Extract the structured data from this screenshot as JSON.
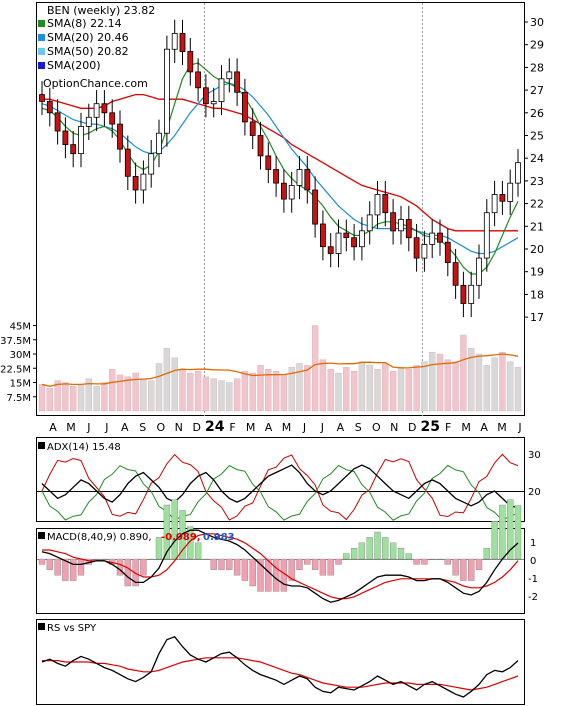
{
  "colors": {
    "sma8": "#228b22",
    "sma20": "#1e8fd6",
    "sma50": "#6cc6ee",
    "sma200": "#1a1acc",
    "sma_red": "#dd0000",
    "up_candle": "#ffffff",
    "down_candle": "#cc1111",
    "volume_bar": "#f2c4cc",
    "volume_bar_alt": "#d8d8d8",
    "volume_ma": "#e06a00",
    "adx_pos": "#cc0000",
    "adx_neg": "#228b22",
    "macd_pos": "#9fe09f",
    "macd_neg": "#f0a0b0",
    "macd_num_red": "#dd0000",
    "macd_num_blue": "#2255cc"
  },
  "legend": {
    "title": "BEN (weekly) 23.82",
    "items": [
      {
        "label": "SMA(8) 22.14",
        "color": "#228b22"
      },
      {
        "label": "SMA(20) 20.46",
        "color": "#1e8fd6"
      },
      {
        "label": "SMA(50) 20.82",
        "color": "#6cc6ee"
      },
      {
        "label": "SMA(200)",
        "color": "#1a1acc"
      }
    ],
    "source": "OptionChance.com"
  },
  "price_axis": {
    "ticks": [
      "30",
      "29",
      "28",
      "27",
      "26",
      "25",
      "24",
      "23",
      "22",
      "21",
      "20",
      "19",
      "18",
      "17"
    ]
  },
  "volume_axis": {
    "ticks": [
      "45M",
      "37.5M",
      "30M",
      "22.5M",
      "15M",
      "7.5M"
    ]
  },
  "months": [
    "A",
    "M",
    "J",
    "J",
    "A",
    "S",
    "O",
    "N",
    "D",
    "24",
    "F",
    "M",
    "A",
    "M",
    "J",
    "J",
    "A",
    "S",
    "O",
    "N",
    "D",
    "25",
    "F",
    "M",
    "A",
    "M",
    "J"
  ],
  "adx": {
    "label": "ADX(14) 15.48",
    "ticks": [
      "30",
      "20"
    ]
  },
  "macd": {
    "label": "MACD(8,40,9) 0.890,",
    "val1": "-0.089,",
    "val2": "0.983",
    "ticks": [
      "1",
      "0",
      "-1",
      "-2"
    ]
  },
  "rs": {
    "label": "RS vs SPY"
  },
  "chart_data": {
    "type": "candlestick",
    "title": "BEN (weekly) 23.82",
    "close": [
      26.5,
      26.0,
      25.2,
      24.6,
      24.2,
      25.4,
      25.8,
      26.4,
      26.0,
      25.5,
      24.4,
      23.2,
      22.6,
      23.3,
      24.2,
      25.1,
      28.8,
      29.5,
      28.7,
      27.8,
      27.1,
      26.4,
      26.5,
      27.5,
      27.8,
      26.9,
      25.6,
      25.0,
      24.1,
      23.5,
      22.9,
      22.2,
      22.8,
      23.5,
      22.6,
      21.1,
      20.1,
      19.8,
      20.7,
      20.5,
      20.1,
      20.8,
      21.5,
      22.4,
      21.6,
      20.8,
      21.3,
      20.5,
      19.6,
      20.2,
      20.7,
      20.3,
      19.4,
      18.4,
      17.6,
      18.4,
      19.6,
      21.6,
      22.4,
      22.1,
      22.9,
      23.8
    ],
    "volume_m": [
      14,
      12,
      16,
      15,
      13,
      14,
      17,
      13,
      15,
      22,
      19,
      18,
      20,
      17,
      16,
      25,
      33,
      28,
      22,
      20,
      21,
      18,
      17,
      16,
      15,
      17,
      21,
      20,
      24,
      22,
      21,
      19,
      23,
      25,
      24,
      45,
      27,
      22,
      20,
      23,
      21,
      26,
      24,
      22,
      25,
      21,
      23,
      22,
      24,
      26,
      31,
      30,
      27,
      26,
      40,
      33,
      30,
      24,
      28,
      31,
      26,
      23
    ],
    "sma8": [
      26.2,
      26.1,
      25.8,
      25.4,
      25.1,
      25.0,
      25.1,
      25.3,
      25.4,
      25.2,
      24.8,
      24.2,
      23.7,
      23.5,
      23.7,
      24.3,
      25.3,
      26.4,
      27.5,
      28.1,
      28.2,
      27.9,
      27.6,
      27.4,
      27.3,
      27.1,
      26.7,
      26.1,
      25.4,
      24.8,
      24.1,
      23.5,
      23.1,
      22.8,
      22.6,
      22.3,
      21.9,
      21.4,
      21.0,
      20.8,
      20.6,
      20.6,
      20.8,
      21.1,
      21.2,
      21.2,
      21.1,
      21.0,
      20.8,
      20.6,
      20.5,
      20.4,
      20.1,
      19.7,
      19.2,
      18.9,
      18.9,
      19.2,
      19.8,
      20.6,
      21.4,
      22.1
    ],
    "sma20": [
      26.4,
      26.3,
      26.1,
      25.9,
      25.7,
      25.6,
      25.5,
      25.5,
      25.4,
      25.3,
      25.1,
      24.8,
      24.5,
      24.3,
      24.2,
      24.3,
      24.6,
      25.0,
      25.5,
      26.0,
      26.4,
      26.8,
      27.0,
      27.2,
      27.3,
      27.2,
      27.0,
      26.7,
      26.3,
      25.9,
      25.4,
      24.9,
      24.4,
      24.0,
      23.6,
      23.1,
      22.7,
      22.3,
      21.9,
      21.6,
      21.3,
      21.1,
      21.0,
      20.9,
      20.9,
      20.9,
      20.9,
      20.9,
      20.8,
      20.7,
      20.6,
      20.6,
      20.5,
      20.3,
      20.1,
      19.9,
      19.8,
      19.8,
      19.9,
      20.1,
      20.3,
      20.5
    ],
    "sma_red": [
      26.6,
      26.6,
      26.5,
      26.4,
      26.3,
      26.2,
      26.2,
      26.2,
      26.3,
      26.5,
      26.6,
      26.7,
      26.8,
      26.8,
      26.7,
      26.6,
      26.6,
      26.6,
      26.6,
      26.5,
      26.4,
      26.3,
      26.2,
      26.2,
      26.1,
      26.0,
      25.9,
      25.7,
      25.5,
      25.3,
      25.1,
      24.9,
      24.6,
      24.4,
      24.2,
      24.0,
      23.8,
      23.6,
      23.4,
      23.2,
      23.0,
      22.8,
      22.7,
      22.6,
      22.5,
      22.4,
      22.3,
      22.1,
      21.9,
      21.6,
      21.3,
      21.1,
      20.9,
      20.8,
      20.8,
      20.8,
      20.8,
      20.8,
      20.8,
      20.8,
      20.8,
      20.8
    ],
    "adx": [
      22,
      20,
      18,
      19,
      21,
      23,
      22,
      20,
      18,
      17,
      19,
      22,
      24,
      25,
      23,
      21,
      18,
      17,
      19,
      22,
      24,
      25,
      23,
      20,
      18,
      17,
      18,
      20,
      22,
      24,
      25,
      26,
      27,
      25,
      22,
      20,
      19,
      20,
      22,
      24,
      26,
      27,
      26,
      24,
      22,
      20,
      19,
      18,
      20,
      22,
      23,
      22,
      20,
      18,
      17,
      16,
      17,
      19,
      20,
      18,
      16,
      15.48
    ],
    "macd": [
      0.4,
      0.3,
      0.1,
      -0.1,
      -0.3,
      -0.3,
      -0.2,
      -0.1,
      -0.1,
      -0.3,
      -0.6,
      -1.0,
      -1.3,
      -1.3,
      -1.0,
      -0.5,
      0.4,
      1.0,
      1.4,
      1.6,
      1.6,
      1.4,
      1.2,
      1.1,
      1.0,
      0.8,
      0.5,
      0.1,
      -0.3,
      -0.7,
      -1.1,
      -1.4,
      -1.5,
      -1.5,
      -1.6,
      -1.9,
      -2.2,
      -2.4,
      -2.3,
      -2.1,
      -1.9,
      -1.6,
      -1.3,
      -1.0,
      -0.9,
      -0.9,
      -0.9,
      -1.0,
      -1.2,
      -1.2,
      -1.1,
      -1.1,
      -1.3,
      -1.6,
      -1.9,
      -2.0,
      -1.8,
      -1.3,
      -0.6,
      0.0,
      0.5,
      0.89
    ],
    "macd_signal": [
      0.5,
      0.5,
      0.4,
      0.3,
      0.1,
      0.0,
      -0.1,
      -0.1,
      -0.1,
      -0.2,
      -0.3,
      -0.5,
      -0.8,
      -1.0,
      -1.0,
      -0.9,
      -0.6,
      -0.1,
      0.5,
      1.0,
      1.3,
      1.4,
      1.4,
      1.3,
      1.2,
      1.1,
      0.9,
      0.6,
      0.3,
      -0.1,
      -0.5,
      -0.8,
      -1.1,
      -1.3,
      -1.5,
      -1.7,
      -1.9,
      -2.1,
      -2.2,
      -2.2,
      -2.1,
      -1.9,
      -1.7,
      -1.5,
      -1.3,
      -1.2,
      -1.1,
      -1.1,
      -1.1,
      -1.1,
      -1.1,
      -1.1,
      -1.2,
      -1.3,
      -1.5,
      -1.6,
      -1.6,
      -1.5,
      -1.3,
      -1.0,
      -0.6,
      -0.1
    ],
    "rs": [
      0.0,
      0.2,
      -0.1,
      -0.3,
      0.1,
      0.4,
      0.2,
      -0.1,
      -0.4,
      -0.6,
      -0.9,
      -1.2,
      -1.4,
      -1.1,
      -0.7,
      0.6,
      1.6,
      1.8,
      1.1,
      0.5,
      0.2,
      0.0,
      0.3,
      0.6,
      0.7,
      0.3,
      -0.2,
      -0.6,
      -0.9,
      -1.1,
      -1.3,
      -1.6,
      -1.3,
      -1.0,
      -1.2,
      -1.8,
      -2.1,
      -2.2,
      -1.8,
      -1.9,
      -2.0,
      -1.7,
      -1.4,
      -1.0,
      -1.3,
      -1.6,
      -1.4,
      -1.7,
      -2.0,
      -1.6,
      -1.4,
      -1.7,
      -2.0,
      -2.3,
      -2.5,
      -2.1,
      -1.6,
      -0.9,
      -0.6,
      -0.7,
      -0.4,
      0.1
    ],
    "rs_ma": [
      0.1,
      0.1,
      0.1,
      0.0,
      0.0,
      0.0,
      0.0,
      -0.1,
      -0.1,
      -0.2,
      -0.3,
      -0.5,
      -0.6,
      -0.7,
      -0.7,
      -0.6,
      -0.4,
      -0.2,
      0.0,
      0.1,
      0.2,
      0.3,
      0.3,
      0.3,
      0.3,
      0.3,
      0.2,
      0.1,
      0.0,
      -0.2,
      -0.4,
      -0.6,
      -0.8,
      -0.9,
      -1.1,
      -1.3,
      -1.5,
      -1.6,
      -1.7,
      -1.8,
      -1.8,
      -1.8,
      -1.7,
      -1.6,
      -1.5,
      -1.5,
      -1.5,
      -1.5,
      -1.6,
      -1.6,
      -1.6,
      -1.6,
      -1.7,
      -1.8,
      -1.9,
      -2.0,
      -1.9,
      -1.8,
      -1.6,
      -1.4,
      -1.2,
      -1.0
    ]
  }
}
